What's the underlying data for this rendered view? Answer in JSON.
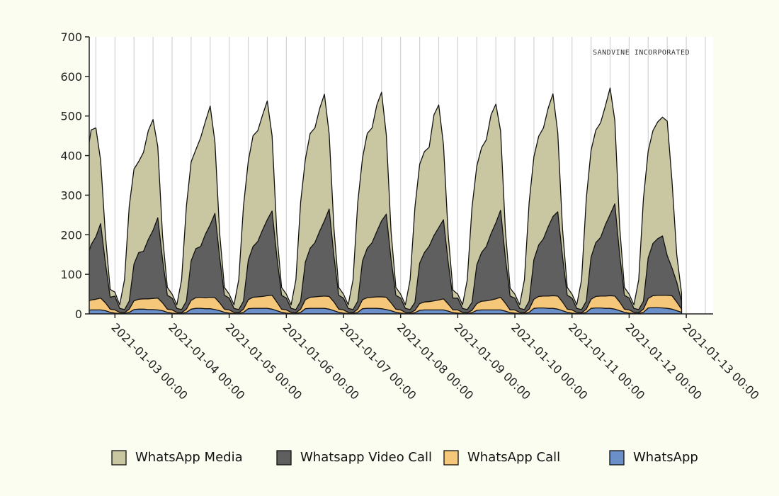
{
  "chart_data": {
    "type": "area",
    "stacked": true,
    "watermark": "SANDVINE INCORPORATED",
    "ylim": [
      0,
      700
    ],
    "yticks": [
      0,
      100,
      200,
      300,
      400,
      500,
      600,
      700
    ],
    "x_tick_labels": [
      "2021-01-03 00:00",
      "2021-01-04 00:00",
      "2021-01-05 00:00",
      "2021-01-06 00:00",
      "2021-01-07 00:00",
      "2021-01-08 00:00",
      "2021-01-09 00:00",
      "2021-01-10 00:00",
      "2021-01-11 00:00",
      "2021-01-12 00:00",
      "2021-01-13 00:00"
    ],
    "x_range_days": [
      -0.45,
      10.47
    ],
    "grid": {
      "vertical": true,
      "horizontal": false
    },
    "legend_position": "bottom",
    "daily_profile_hours": [
      0,
      2,
      4,
      6,
      8,
      10,
      12,
      14,
      16,
      18,
      20,
      22
    ],
    "series": [
      {
        "name": "WhatsApp",
        "color": "#6b8fc8",
        "values": [
          [
            2,
            1,
            1,
            4,
            8,
            9,
            9,
            10,
            10,
            10,
            8,
            4
          ],
          [
            2,
            1,
            1,
            4,
            11,
            12,
            12,
            11,
            11,
            10,
            8,
            4
          ],
          [
            2,
            1,
            1,
            4,
            12,
            14,
            14,
            13,
            13,
            11,
            8,
            4
          ],
          [
            2,
            1,
            1,
            4,
            13,
            14,
            14,
            14,
            14,
            12,
            8,
            4
          ],
          [
            2,
            1,
            1,
            4,
            13,
            14,
            14,
            14,
            14,
            12,
            8,
            4
          ],
          [
            2,
            1,
            1,
            4,
            13,
            14,
            14,
            14,
            13,
            11,
            8,
            4
          ],
          [
            2,
            1,
            1,
            3,
            9,
            10,
            10,
            10,
            10,
            10,
            7,
            3
          ],
          [
            2,
            1,
            1,
            3,
            9,
            10,
            10,
            10,
            10,
            10,
            7,
            3
          ],
          [
            2,
            1,
            1,
            4,
            14,
            15,
            15,
            14,
            14,
            12,
            8,
            4
          ],
          [
            2,
            1,
            1,
            4,
            14,
            15,
            15,
            14,
            14,
            12,
            8,
            4
          ],
          [
            2,
            1,
            1,
            4,
            15,
            16,
            16,
            15,
            14,
            12,
            8,
            4
          ]
        ]
      },
      {
        "name": "WhatsApp Call",
        "color": "#f5c77a",
        "values": [
          [
            8,
            3,
            2,
            6,
            15,
            20,
            22,
            25,
            27,
            30,
            20,
            8
          ],
          [
            8,
            3,
            2,
            8,
            22,
            25,
            26,
            27,
            28,
            30,
            20,
            8
          ],
          [
            8,
            3,
            2,
            8,
            22,
            27,
            28,
            28,
            29,
            30,
            20,
            8
          ],
          [
            8,
            3,
            2,
            8,
            23,
            28,
            29,
            30,
            32,
            35,
            22,
            8
          ],
          [
            8,
            3,
            2,
            8,
            23,
            28,
            29,
            30,
            31,
            32,
            22,
            8
          ],
          [
            8,
            3,
            2,
            8,
            23,
            27,
            28,
            29,
            30,
            31,
            20,
            8
          ],
          [
            8,
            3,
            2,
            6,
            17,
            20,
            21,
            23,
            25,
            28,
            18,
            7
          ],
          [
            8,
            3,
            2,
            6,
            17,
            22,
            23,
            25,
            28,
            32,
            20,
            7
          ],
          [
            8,
            3,
            2,
            8,
            23,
            29,
            30,
            31,
            32,
            33,
            22,
            8
          ],
          [
            8,
            3,
            2,
            8,
            23,
            29,
            30,
            31,
            32,
            33,
            22,
            8
          ],
          [
            8,
            3,
            2,
            8,
            24,
            30,
            31,
            32,
            33,
            34,
            22,
            8
          ]
        ]
      },
      {
        "name": "Whatsapp Video Call",
        "color": "#5f5f5f",
        "values": [
          [
            150,
            25,
            15,
            20,
            85,
            110,
            107,
            140,
            158,
            188,
            100,
            30
          ],
          [
            35,
            10,
            8,
            20,
            93,
            118,
            120,
            150,
            172,
            203,
            110,
            35
          ],
          [
            30,
            10,
            8,
            20,
            100,
            124,
            128,
            160,
            183,
            213,
            115,
            35
          ],
          [
            30,
            10,
            8,
            20,
            100,
            128,
            140,
            168,
            192,
            213,
            115,
            35
          ],
          [
            30,
            10,
            8,
            20,
            95,
            124,
            137,
            165,
            190,
            221,
            115,
            35
          ],
          [
            30,
            10,
            8,
            20,
            98,
            125,
            138,
            165,
            192,
            210,
            110,
            35
          ],
          [
            30,
            10,
            8,
            20,
            102,
            125,
            140,
            165,
            183,
            200,
            105,
            30
          ],
          [
            30,
            10,
            8,
            20,
            98,
            123,
            137,
            168,
            192,
            220,
            115,
            35
          ],
          [
            30,
            10,
            8,
            20,
            100,
            130,
            145,
            175,
            200,
            213,
            115,
            35
          ],
          [
            30,
            10,
            8,
            20,
            106,
            136,
            148,
            180,
            205,
            233,
            120,
            35
          ],
          [
            30,
            10,
            8,
            20,
            103,
            132,
            143,
            150,
            100,
            70,
            50,
            20
          ]
        ]
      },
      {
        "name": "WhatsApp Media",
        "color": "#c9c7a2",
        "values": [
          [
            10,
            9,
            80,
            230,
            220,
            240,
            250,
            290,
            275,
            160,
            70,
            20
          ],
          [
            10,
            9,
            75,
            240,
            240,
            230,
            250,
            275,
            280,
            180,
            60,
            20
          ],
          [
            10,
            9,
            75,
            240,
            250,
            250,
            275,
            285,
            300,
            180,
            60,
            20
          ],
          [
            10,
            9,
            75,
            240,
            250,
            280,
            280,
            290,
            300,
            190,
            60,
            20
          ],
          [
            10,
            9,
            75,
            250,
            260,
            290,
            290,
            310,
            320,
            190,
            70,
            20
          ],
          [
            10,
            9,
            75,
            250,
            260,
            290,
            290,
            320,
            325,
            200,
            70,
            20
          ],
          [
            10,
            9,
            75,
            240,
            250,
            255,
            250,
            305,
            310,
            190,
            70,
            20
          ],
          [
            10,
            9,
            75,
            240,
            250,
            265,
            270,
            300,
            300,
            200,
            70,
            20
          ],
          [
            10,
            9,
            75,
            250,
            260,
            275,
            280,
            300,
            310,
            200,
            70,
            20
          ],
          [
            10,
            9,
            75,
            260,
            270,
            284,
            290,
            300,
            320,
            210,
            70,
            20
          ],
          [
            10,
            9,
            75,
            260,
            270,
            285,
            295,
            300,
            340,
            220,
            70,
            20
          ]
        ]
      }
    ],
    "legend": [
      {
        "label": "WhatsApp Media",
        "color": "#c9c7a2"
      },
      {
        "label": "Whatsapp Video Call",
        "color": "#5f5f5f"
      },
      {
        "label": "WhatsApp Call",
        "color": "#f5c77a"
      },
      {
        "label": "WhatsApp",
        "color": "#6b8fc8"
      }
    ]
  }
}
